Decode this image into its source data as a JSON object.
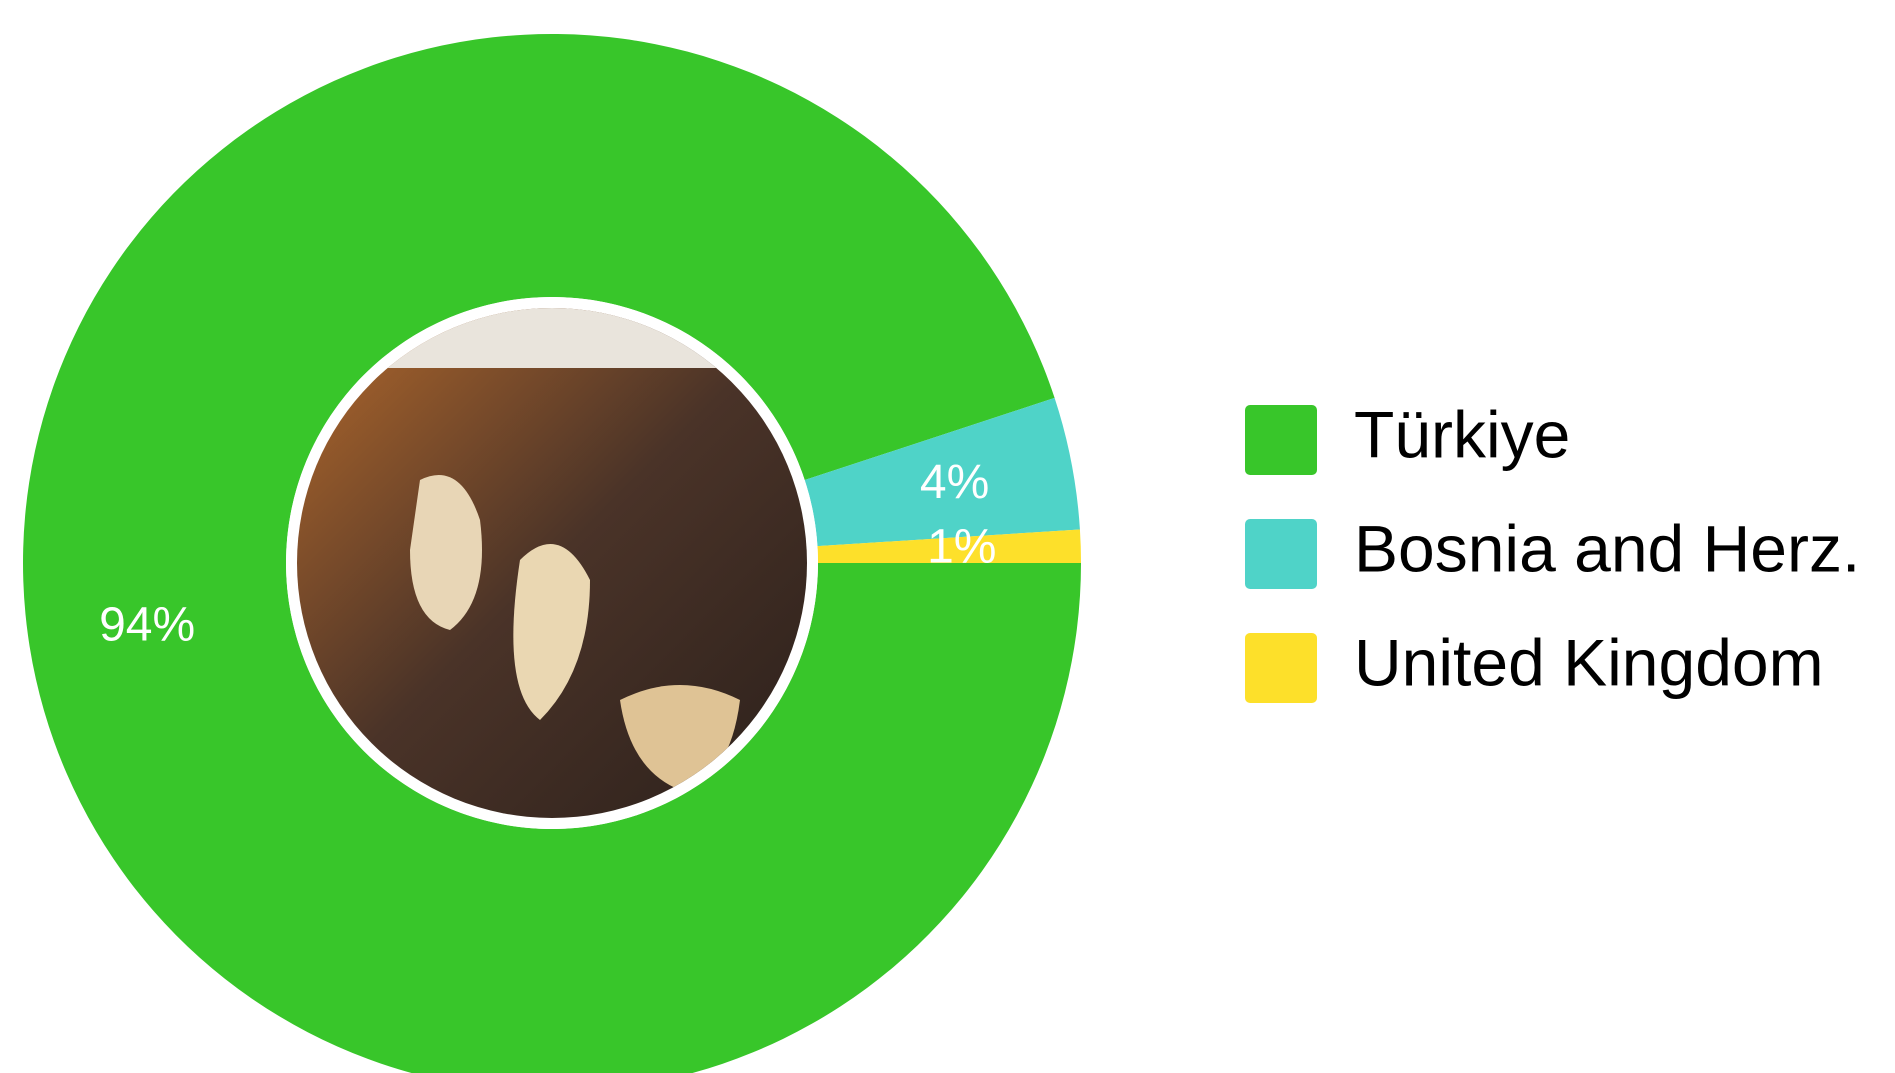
{
  "chart_data": {
    "type": "donut",
    "categories": [
      "Türkiye",
      "Bosnia and Herz.",
      "United Kingdom"
    ],
    "values": [
      94,
      4,
      1
    ],
    "value_labels": [
      "94%",
      "4%",
      "1%"
    ],
    "colors": [
      "#38c62a",
      "#4fd3c8",
      "#fde02a"
    ],
    "legend": "right"
  }
}
